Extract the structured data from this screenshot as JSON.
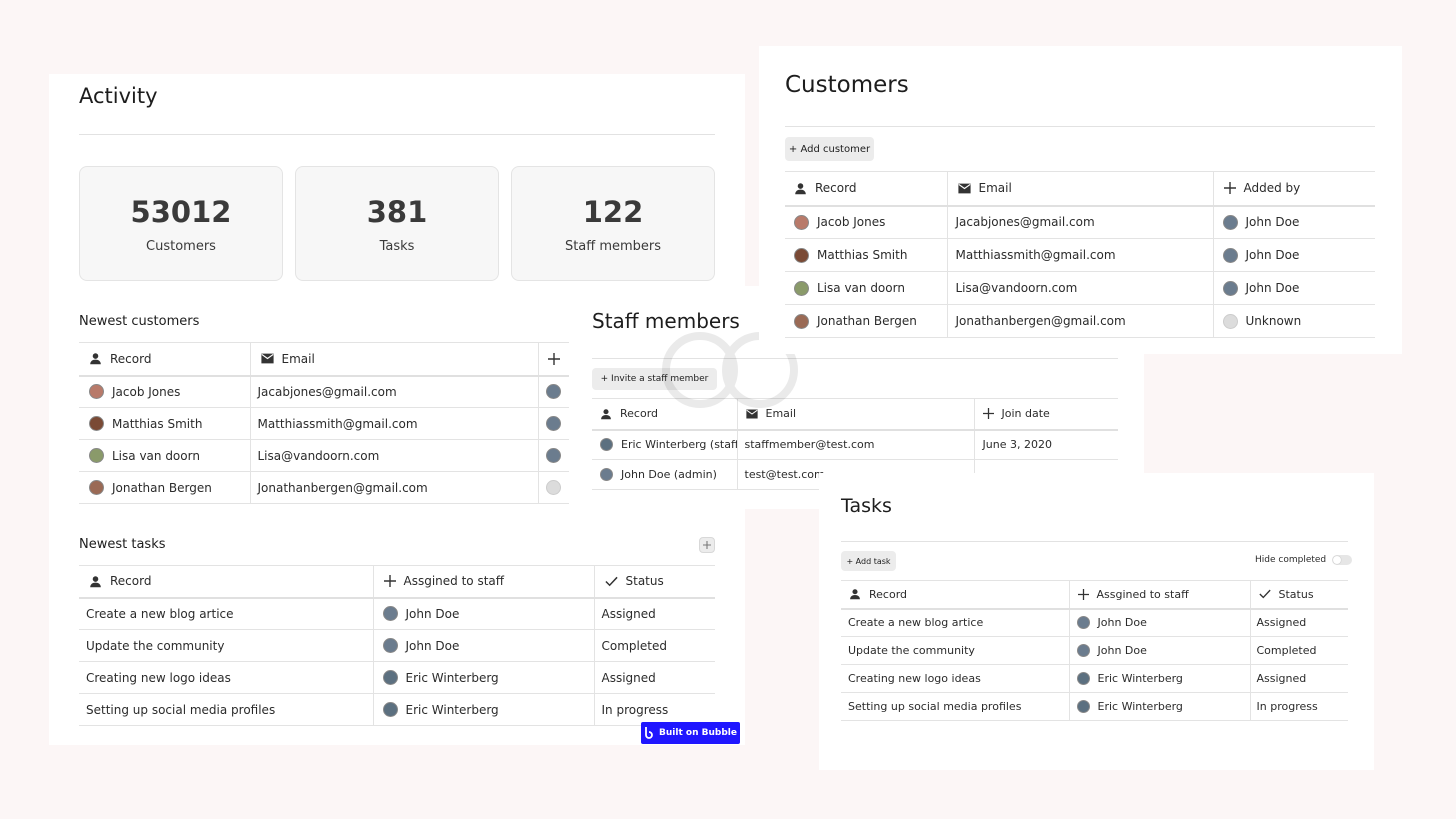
{
  "colors": {
    "background": "#fcf6f6",
    "panel": "#ffffff",
    "bubble_badge": "#1f16ff"
  },
  "activity": {
    "title": "Activity",
    "stats": [
      {
        "value": "53012",
        "label": "Customers"
      },
      {
        "value": "381",
        "label": "Tasks"
      },
      {
        "value": "122",
        "label": "Staff members"
      }
    ],
    "newest_customers": {
      "title": "Newest customers",
      "headers": {
        "record": "Record",
        "email": "Email"
      },
      "header_icons": {
        "record": "person-icon",
        "email": "mail-icon",
        "added_by": "plus-icon"
      },
      "rows": [
        {
          "name": "Jacob Jones",
          "email": "Jacabjones@gmail.com"
        },
        {
          "name": "Matthias Smith",
          "email": "Matthiassmith@gmail.com"
        },
        {
          "name": "Lisa van doorn",
          "email": "Lisa@vandoorn.com"
        },
        {
          "name": "Jonathan Bergen",
          "email": "Jonathanbergen@gmail.com"
        }
      ]
    },
    "newest_tasks": {
      "title": "Newest tasks",
      "headers": {
        "record": "Record",
        "assigned": "Assgined to staff",
        "status": "Status"
      },
      "rows": [
        {
          "task": "Create a new blog artice",
          "staff": "John Doe",
          "status": "Assigned"
        },
        {
          "task": "Update the community",
          "staff": "John Doe",
          "status": "Completed"
        },
        {
          "task": "Creating new logo ideas",
          "staff": "Eric Winterberg",
          "status": "Assigned"
        },
        {
          "task": "Setting up social media profiles",
          "staff": "Eric Winterberg",
          "status": "In progress"
        }
      ]
    },
    "badge": "Built on Bubble"
  },
  "customers": {
    "title": "Customers",
    "add_button": "+ Add customer",
    "headers": {
      "record": "Record",
      "email": "Email",
      "added_by": "Added by"
    },
    "rows": [
      {
        "name": "Jacob Jones",
        "email": "Jacabjones@gmail.com",
        "added_by": "John Doe"
      },
      {
        "name": "Matthias Smith",
        "email": "Matthiassmith@gmail.com",
        "added_by": "John Doe"
      },
      {
        "name": "Lisa van doorn",
        "email": "Lisa@vandoorn.com",
        "added_by": "John Doe"
      },
      {
        "name": "Jonathan Bergen",
        "email": "Jonathanbergen@gmail.com",
        "added_by": "Unknown"
      }
    ]
  },
  "staff": {
    "title": "Staff members",
    "invite_button": "+ Invite a staff member",
    "headers": {
      "record": "Record",
      "email": "Email",
      "join_date": "Join date"
    },
    "rows": [
      {
        "name": "Eric Winterberg (staff)",
        "email": "staffmember@test.com",
        "join_date": "June 3, 2020"
      },
      {
        "name": "John Doe (admin)",
        "email": "test@test.com",
        "join_date": ""
      }
    ]
  },
  "tasks": {
    "title": "Tasks",
    "add_button": "+ Add task",
    "hide_completed_label": "Hide completed",
    "hide_completed": false,
    "headers": {
      "record": "Record",
      "assigned": "Assgined to staff",
      "status": "Status"
    },
    "rows": [
      {
        "task": "Create a new blog artice",
        "staff": "John Doe",
        "status": "Assigned"
      },
      {
        "task": "Update the community",
        "staff": "John Doe",
        "status": "Completed"
      },
      {
        "task": "Creating new logo ideas",
        "staff": "Eric Winterberg",
        "status": "Assigned"
      },
      {
        "task": "Setting up social media profiles",
        "staff": "Eric Winterberg",
        "status": "In progress"
      }
    ]
  }
}
